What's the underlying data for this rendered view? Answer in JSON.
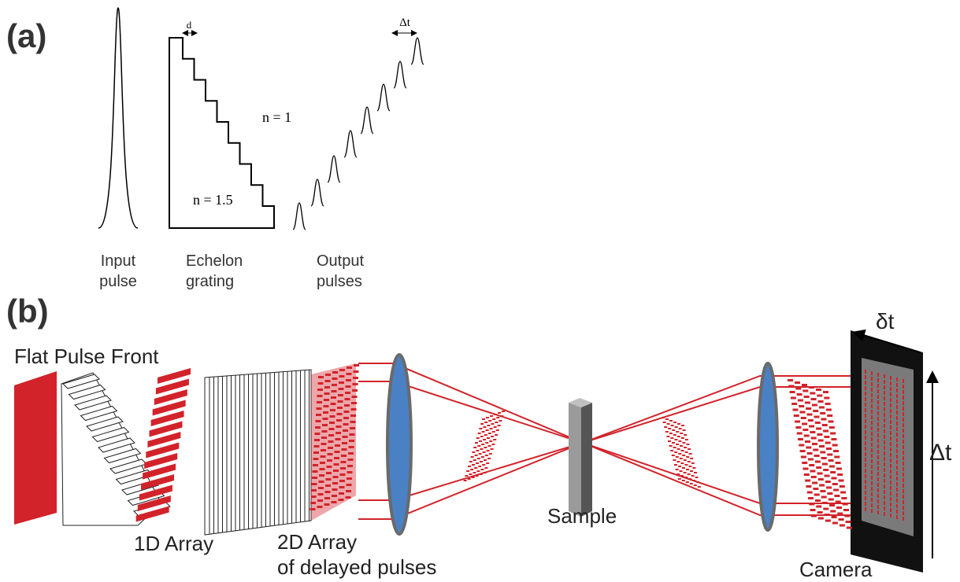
{
  "panel_a": {
    "label": "(a)",
    "input_pulse": [
      "Input",
      "pulse"
    ],
    "echelon_grating": [
      "Echelon",
      "grating"
    ],
    "output_pulses": [
      "Output",
      "pulses"
    ],
    "n_air": "n = 1",
    "n_glass": "n = 1.5",
    "step_width": "d",
    "delay": "Δt"
  },
  "panel_b": {
    "label": "(b)",
    "flat_pulse_front": "Flat Pulse Front",
    "array_1d": "1D Array",
    "array_2d": [
      "2D Array",
      "of delayed pulses"
    ],
    "sample": "Sample",
    "camera": "Camera",
    "camera_width": "δt",
    "camera_height": "Δt"
  }
}
